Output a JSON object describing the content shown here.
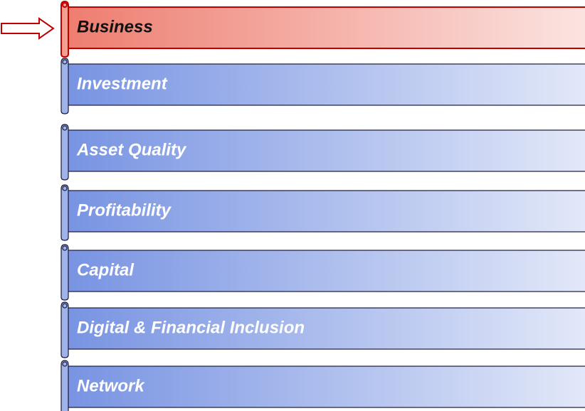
{
  "items": [
    {
      "label": "Business",
      "color": "#e8523f"
    },
    {
      "label": "Investment",
      "color": "#4a6fd8"
    },
    {
      "label": "Asset Quality",
      "color": "#4a6fd8"
    },
    {
      "label": "Profitability",
      "color": "#4a6fd8"
    },
    {
      "label": "Capital",
      "color": "#4a6fd8"
    },
    {
      "label": "Digital & Financial Inclusion",
      "color": "#4a6fd8"
    },
    {
      "label": "Network",
      "color": "#4a6fd8"
    }
  ]
}
